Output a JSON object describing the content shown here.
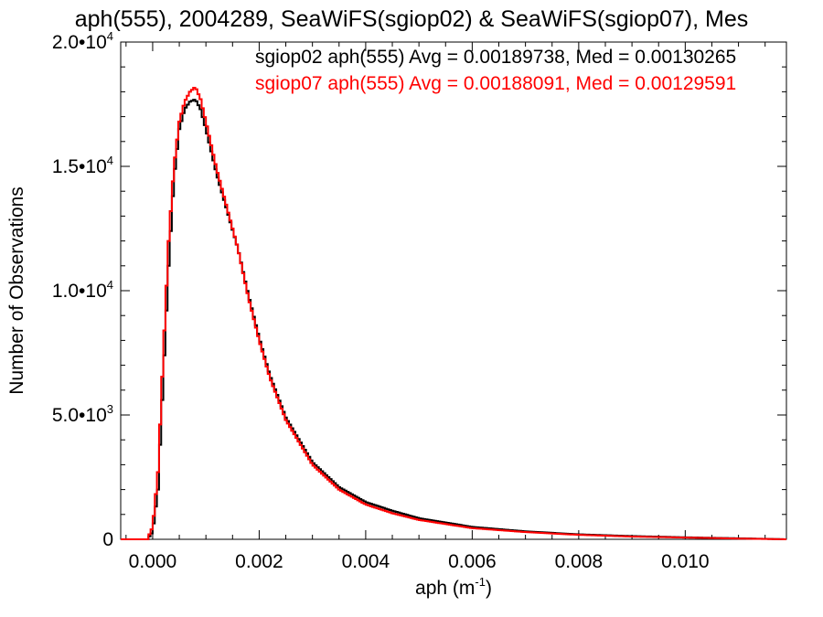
{
  "chart_data": {
    "type": "line",
    "title": "aph(555), 2004289, SeaWiFS(sgiop02) & SeaWiFS(sgiop07), Mes",
    "xlabel": "aph (m",
    "xlabel_sup": "-1",
    "xlabel_close": ")",
    "ylabel": "Number of Observations",
    "xlim": [
      -0.0006,
      0.0119
    ],
    "ylim": [
      0,
      20000
    ],
    "grid": false,
    "legend_placement": "top-right",
    "xticks": [
      {
        "value": 0.0,
        "label": "0.000"
      },
      {
        "value": 0.002,
        "label": "0.002"
      },
      {
        "value": 0.004,
        "label": "0.004"
      },
      {
        "value": 0.006,
        "label": "0.006"
      },
      {
        "value": 0.008,
        "label": "0.008"
      },
      {
        "value": 0.01,
        "label": "0.010"
      }
    ],
    "yticks": [
      {
        "value": 0,
        "label": "0",
        "sup": ""
      },
      {
        "value": 5000,
        "label": "5.0•10",
        "sup": "3"
      },
      {
        "value": 10000,
        "label": "1.0•10",
        "sup": "4"
      },
      {
        "value": 15000,
        "label": "1.5•10",
        "sup": "4"
      },
      {
        "value": 20000,
        "label": "2.0•10",
        "sup": "4"
      }
    ],
    "series": [
      {
        "name": "sgiop02 aph(555) Avg = 0.00189738, Med = 0.00130265",
        "color": "#000000",
        "x": [
          -0.0006,
          -0.0001,
          0.0,
          0.0001,
          0.0002,
          0.0003,
          0.0004,
          0.0005,
          0.0006,
          0.0007,
          0.0008,
          0.0009,
          0.001,
          0.0012,
          0.0014,
          0.0016,
          0.0018,
          0.002,
          0.0022,
          0.0025,
          0.003,
          0.0035,
          0.004,
          0.0045,
          0.005,
          0.006,
          0.007,
          0.008,
          0.009,
          0.01,
          0.011,
          0.0119
        ],
        "y": [
          0,
          0,
          300,
          2000,
          6500,
          11000,
          14500,
          16500,
          17300,
          17600,
          17700,
          17300,
          16500,
          14700,
          13200,
          11700,
          9800,
          8100,
          6600,
          4900,
          3100,
          2100,
          1500,
          1150,
          850,
          500,
          320,
          200,
          130,
          80,
          40,
          0
        ]
      },
      {
        "name": "sgiop07 aph(555) Avg = 0.00188091, Med = 0.00129591",
        "color": "#ff0000",
        "x": [
          -0.0006,
          -0.0001,
          0.0,
          0.0001,
          0.0002,
          0.0003,
          0.0004,
          0.0005,
          0.0006,
          0.0007,
          0.0008,
          0.0009,
          0.001,
          0.0012,
          0.0014,
          0.0016,
          0.0018,
          0.002,
          0.0022,
          0.0025,
          0.003,
          0.0035,
          0.004,
          0.0045,
          0.005,
          0.006,
          0.007,
          0.008,
          0.009,
          0.01,
          0.011,
          0.0119
        ],
        "y": [
          0,
          0,
          500,
          2700,
          7500,
          12000,
          15000,
          16800,
          17600,
          18000,
          18200,
          17700,
          16800,
          14900,
          13300,
          11700,
          9700,
          8000,
          6500,
          4800,
          3000,
          2000,
          1400,
          1050,
          780,
          450,
          290,
          180,
          110,
          70,
          30,
          0
        ]
      }
    ]
  }
}
